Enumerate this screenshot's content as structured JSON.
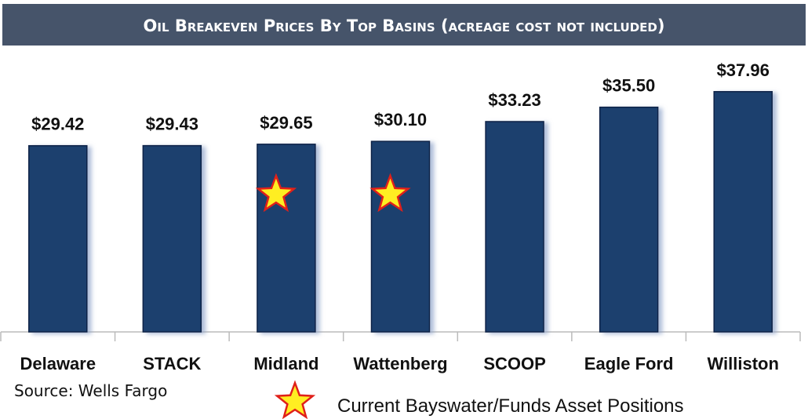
{
  "chart_data": {
    "type": "bar",
    "title": "Oil Breakeven Prices By Top Basins (acreage cost not included)",
    "categories": [
      "Delaware",
      "STACK",
      "Midland",
      "Wattenberg",
      "SCOOP",
      "Eagle Ford",
      "Williston"
    ],
    "values": [
      29.42,
      29.43,
      29.65,
      30.1,
      33.23,
      35.5,
      37.96
    ],
    "value_labels": [
      "$29.42",
      "$29.43",
      "$29.65",
      "$30.10",
      "$33.23",
      "$35.50",
      "$37.96"
    ],
    "color": "#1f3f6e",
    "ylim": [
      0,
      45
    ],
    "highlighted": [
      false,
      false,
      true,
      true,
      false,
      false,
      false
    ],
    "legend": {
      "marker": "star",
      "label": "Current Bayswater/Funds Asset Positions"
    },
    "source": "Source: Wells Fargo"
  }
}
